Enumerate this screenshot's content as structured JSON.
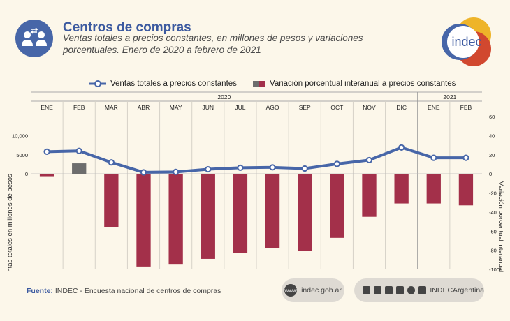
{
  "header": {
    "title": "Centros de compras",
    "subtitle": "Ventas totales a precios constantes, en millones de pesos y variaciones porcentuales. Enero de 2020 a febrero de 2021",
    "icon": "people-exchange-icon",
    "logo_text": "indec"
  },
  "colors": {
    "line": "#4766a8",
    "bar_negative": "#a3304a",
    "bar_positive": "#6d6d6d",
    "title": "#3c5aa0"
  },
  "chart_data": {
    "type": "bar",
    "categories": [
      "ENE",
      "FEB",
      "MAR",
      "ABR",
      "MAY",
      "JUN",
      "JUL",
      "AGO",
      "SEP",
      "OCT",
      "NOV",
      "DIC",
      "ENE",
      "FEB"
    ],
    "years": [
      {
        "label": "2020",
        "span": 12
      },
      {
        "label": "2021",
        "span": 2
      }
    ],
    "series": [
      {
        "name": "Ventas totales a precios constantes",
        "type": "line",
        "axis": "left",
        "values": [
          5800,
          6000,
          3000,
          400,
          500,
          1200,
          1600,
          1700,
          1400,
          2600,
          3600,
          6900,
          4200,
          4200
        ]
      },
      {
        "name": "Variación porcentual interanual a precios constantes",
        "type": "bar",
        "axis": "right",
        "values": [
          -2.5,
          11,
          -56,
          -97,
          -95,
          -89,
          -83,
          -78,
          -81,
          -67,
          -45,
          -31,
          -31,
          -33
        ]
      }
    ],
    "left_axis": {
      "label": "Ventas totales en millones de pesos",
      "ticks": [
        0,
        5000,
        10000
      ],
      "tick_labels": [
        "0",
        "5000",
        "10,000"
      ],
      "range": [
        -17500,
        10000
      ]
    },
    "right_axis": {
      "label": "Variación porcentual interanual",
      "ticks": [
        60,
        40,
        20,
        0,
        -20,
        -40,
        -60,
        -80,
        -100
      ],
      "range": [
        -100,
        60
      ]
    },
    "legend_position": "top"
  },
  "footer": {
    "source_label": "Fuente:",
    "source_text": "INDEC - Encuesta nacional de centros de compras",
    "website_icon_text": "www",
    "website": "indec.gob.ar",
    "social_handle": "INDECArgentina",
    "social_icons": [
      "twitter-icon",
      "facebook-icon",
      "instagram-icon",
      "linkedin-icon",
      "spotify-icon",
      "youtube-icon"
    ]
  }
}
